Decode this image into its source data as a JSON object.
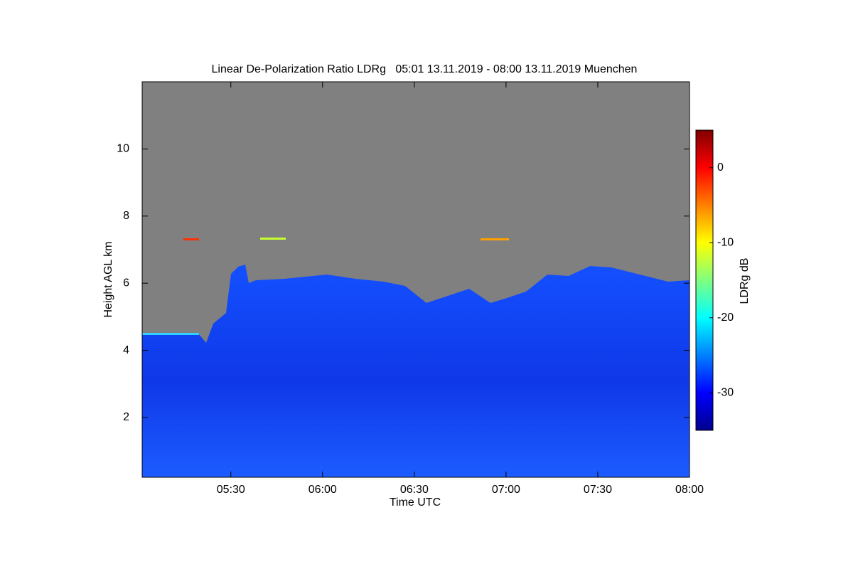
{
  "chart_data": {
    "type": "heatmap",
    "title": "Linear De-Polarization Ratio LDRg   05:01 13.11.2019 - 08:00 13.11.2019 Muenchen",
    "x_label": "Time UTC",
    "y_label": "Height AGL km",
    "colorbar_label": "LDRg dB",
    "colormap": "jet",
    "xlim": [
      301,
      480
    ],
    "xticks": [
      {
        "value": 330,
        "label": "05:30"
      },
      {
        "value": 360,
        "label": "06:00"
      },
      {
        "value": 390,
        "label": "06:30"
      },
      {
        "value": 420,
        "label": "07:00"
      },
      {
        "value": 450,
        "label": "07:30"
      },
      {
        "value": 480,
        "label": "08:00"
      }
    ],
    "ylim": [
      0.22,
      12
    ],
    "yticks": [
      2,
      4,
      6,
      8,
      10
    ],
    "clim": [
      -35,
      5
    ],
    "cticks": [
      0,
      -10,
      -20,
      -30
    ]
  }
}
